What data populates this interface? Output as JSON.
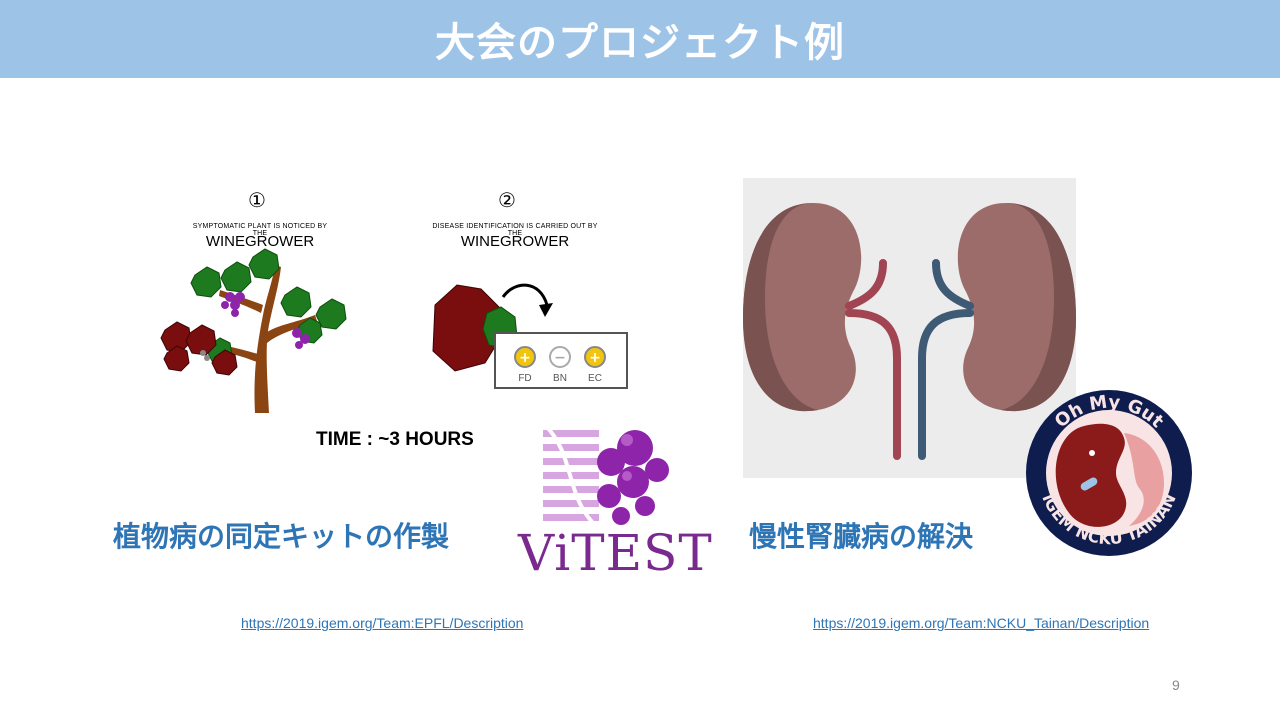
{
  "slide": {
    "title": "大会のプロジェクト例",
    "page_number": "9"
  },
  "left_project": {
    "step1": {
      "number": "①",
      "small": "SYMPTOMATIC PLANT IS NOTICED BY THE",
      "big": "WINEGROWER"
    },
    "step2": {
      "number": "②",
      "small": "DISEASE IDENTIFICATION IS CARRIED OUT BY THE",
      "big": "WINEGROWER"
    },
    "test_labels": [
      "FD",
      "BN",
      "EC"
    ],
    "time_text": "TIME : ~3 HOURS",
    "logo_text": "ViTEST",
    "caption": "植物病の同定キットの作製",
    "link": "https://2019.igem.org/Team:EPFL/Description"
  },
  "right_project": {
    "caption": "慢性腎臓病の解決",
    "logo_top_text": "Oh My Gut",
    "logo_bottom_text": "iGEM NCKU TAINAN",
    "link": "https://2019.igem.org/Team:NCKU_Tainan/Description"
  }
}
